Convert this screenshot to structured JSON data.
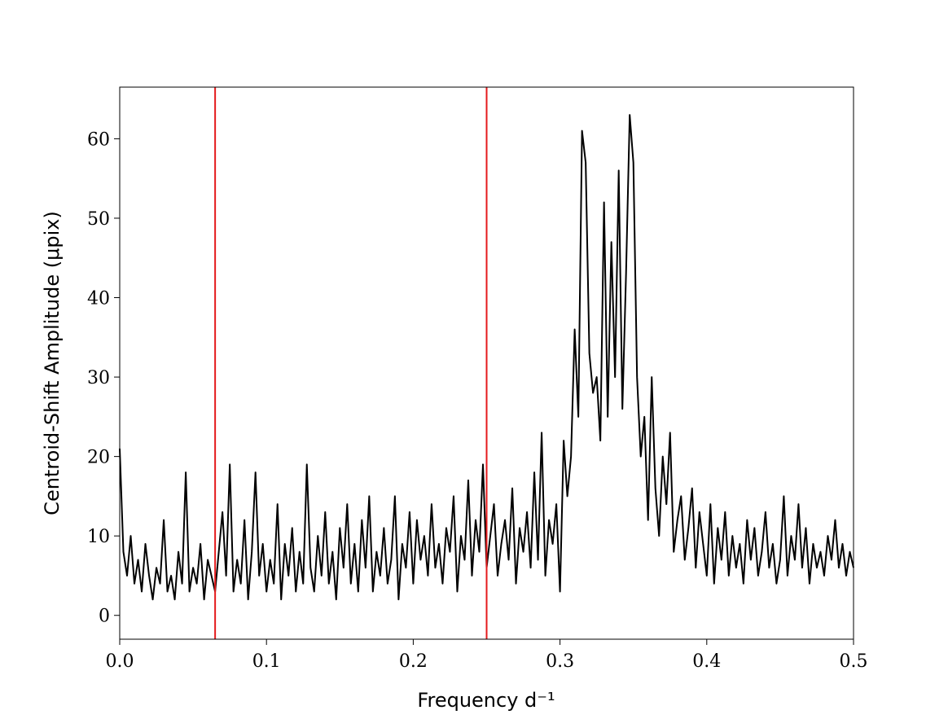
{
  "chart_data": {
    "type": "line",
    "xlabel": "Frequency d⁻¹",
    "ylabel": "Centroid-Shift Amplitude (μpix)",
    "xlim": [
      0,
      0.5
    ],
    "ylim": [
      -3,
      66.5
    ],
    "xticks": [
      {
        "value": 0,
        "label": "0.0"
      },
      {
        "value": 0.1,
        "label": "0.1"
      },
      {
        "value": 0.2,
        "label": "0.2"
      },
      {
        "value": 0.3,
        "label": "0.3"
      },
      {
        "value": 0.4,
        "label": "0.4"
      },
      {
        "value": 0.5,
        "label": "0.5"
      }
    ],
    "yticks": [
      0,
      10,
      20,
      30,
      40,
      50,
      60
    ],
    "vlines": [
      {
        "x": 0.065,
        "color": "#e41a1c"
      },
      {
        "x": 0.25,
        "color": "#e41a1c"
      }
    ],
    "x": [
      0,
      0.0025,
      0.005,
      0.0075,
      0.01,
      0.0125,
      0.015,
      0.0175,
      0.02,
      0.0225,
      0.025,
      0.0275,
      0.03,
      0.0325,
      0.035,
      0.0375,
      0.04,
      0.0425,
      0.045,
      0.0475,
      0.05,
      0.0525,
      0.055,
      0.0575,
      0.06,
      0.0625,
      0.065,
      0.0675,
      0.07,
      0.0725,
      0.075,
      0.0775,
      0.08,
      0.0825,
      0.085,
      0.0875,
      0.09,
      0.0925,
      0.095,
      0.0975,
      0.1,
      0.1025,
      0.105,
      0.1075,
      0.11,
      0.1125,
      0.115,
      0.1175,
      0.12,
      0.1225,
      0.125,
      0.1275,
      0.13,
      0.1325,
      0.135,
      0.1375,
      0.14,
      0.1425,
      0.145,
      0.1475,
      0.15,
      0.1525,
      0.155,
      0.1575,
      0.16,
      0.1625,
      0.165,
      0.1675,
      0.17,
      0.1725,
      0.175,
      0.1775,
      0.18,
      0.1825,
      0.185,
      0.1875,
      0.19,
      0.1925,
      0.195,
      0.1975,
      0.2,
      0.2025,
      0.205,
      0.2075,
      0.21,
      0.2125,
      0.215,
      0.2175,
      0.22,
      0.2225,
      0.225,
      0.2275,
      0.23,
      0.2325,
      0.235,
      0.2375,
      0.24,
      0.2425,
      0.245,
      0.2475,
      0.25,
      0.2525,
      0.255,
      0.2575,
      0.26,
      0.2625,
      0.265,
      0.2675,
      0.27,
      0.2725,
      0.275,
      0.2775,
      0.28,
      0.2825,
      0.285,
      0.2875,
      0.29,
      0.2925,
      0.295,
      0.2975,
      0.3,
      0.3025,
      0.305,
      0.3075,
      0.31,
      0.3125,
      0.315,
      0.3175,
      0.32,
      0.3225,
      0.325,
      0.3275,
      0.33,
      0.3325,
      0.335,
      0.3375,
      0.34,
      0.3425,
      0.345,
      0.3475,
      0.35,
      0.3525,
      0.355,
      0.3575,
      0.36,
      0.3625,
      0.365,
      0.3675,
      0.37,
      0.3725,
      0.375,
      0.3775,
      0.38,
      0.3825,
      0.385,
      0.3875,
      0.39,
      0.3925,
      0.395,
      0.3975,
      0.4,
      0.4025,
      0.405,
      0.4075,
      0.41,
      0.4125,
      0.415,
      0.4175,
      0.42,
      0.4225,
      0.425,
      0.4275,
      0.43,
      0.4325,
      0.435,
      0.4375,
      0.44,
      0.4425,
      0.445,
      0.4475,
      0.45,
      0.4525,
      0.455,
      0.4575,
      0.46,
      0.4625,
      0.465,
      0.4675,
      0.47,
      0.4725,
      0.475,
      0.4775,
      0.48,
      0.4825,
      0.485,
      0.4875,
      0.49,
      0.4925,
      0.495,
      0.4975,
      0.5
    ],
    "series": [
      {
        "color": "#000000",
        "values": [
          21,
          8,
          5,
          10,
          4,
          7,
          3,
          9,
          5,
          2,
          6,
          4,
          12,
          3,
          5,
          2,
          8,
          4,
          18,
          3,
          6,
          4,
          9,
          2,
          7,
          5,
          3,
          8,
          13,
          5,
          19,
          3,
          7,
          4,
          12,
          2,
          8,
          18,
          5,
          9,
          3,
          7,
          4,
          14,
          2,
          9,
          5,
          11,
          3,
          8,
          4,
          19,
          6,
          3,
          10,
          5,
          13,
          4,
          8,
          2,
          11,
          6,
          14,
          4,
          9,
          3,
          12,
          6,
          15,
          3,
          8,
          5,
          11,
          4,
          7,
          15,
          2,
          9,
          6,
          13,
          4,
          12,
          7,
          10,
          5,
          14,
          6,
          9,
          4,
          11,
          8,
          15,
          3,
          10,
          7,
          17,
          5,
          12,
          8,
          19,
          6,
          10,
          14,
          5,
          9,
          12,
          7,
          16,
          4,
          11,
          8,
          13,
          6,
          18,
          7,
          23,
          5,
          12,
          9,
          14,
          3,
          22,
          15,
          20,
          36,
          25,
          61,
          57,
          33,
          28,
          30,
          22,
          52,
          25,
          47,
          30,
          56,
          26,
          43,
          63,
          57,
          30,
          20,
          25,
          12,
          30,
          16,
          10,
          20,
          14,
          23,
          8,
          12,
          15,
          7,
          11,
          16,
          6,
          13,
          9,
          5,
          14,
          4,
          11,
          7,
          13,
          5,
          10,
          6,
          9,
          4,
          12,
          7,
          11,
          5,
          8,
          13,
          6,
          9,
          4,
          7,
          15,
          5,
          10,
          7,
          14,
          6,
          11,
          4,
          9,
          6,
          8,
          5,
          10,
          7,
          12,
          6,
          9,
          5,
          8,
          6
        ]
      }
    ]
  }
}
